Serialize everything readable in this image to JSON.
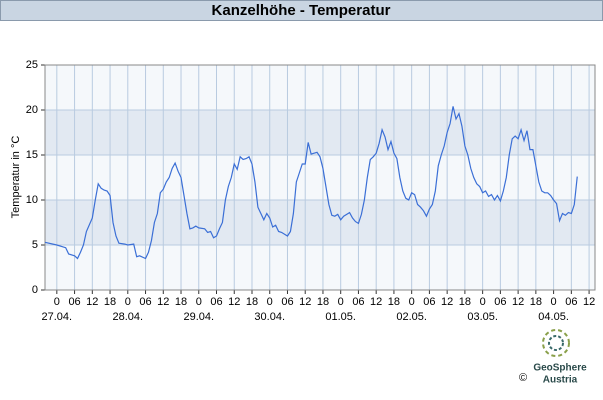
{
  "chart_data": {
    "type": "line",
    "title": "Kanzelhöhe - Temperatur",
    "y_label": "Temperatur in °C",
    "ylim": [
      0,
      25
    ],
    "yticks": [
      0,
      5,
      10,
      15,
      20,
      25
    ],
    "xlim": [
      -4,
      182
    ],
    "xticks": [
      {
        "value": 0,
        "label": "0"
      },
      {
        "value": 6,
        "label": "06"
      },
      {
        "value": 12,
        "label": "12"
      },
      {
        "value": 18,
        "label": "18"
      },
      {
        "value": 24,
        "label": "0"
      },
      {
        "value": 30,
        "label": "06"
      },
      {
        "value": 36,
        "label": "12"
      },
      {
        "value": 42,
        "label": "18"
      },
      {
        "value": 48,
        "label": "0"
      },
      {
        "value": 54,
        "label": "06"
      },
      {
        "value": 60,
        "label": "12"
      },
      {
        "value": 66,
        "label": "18"
      },
      {
        "value": 72,
        "label": "0"
      },
      {
        "value": 78,
        "label": "06"
      },
      {
        "value": 84,
        "label": "12"
      },
      {
        "value": 90,
        "label": "18"
      },
      {
        "value": 96,
        "label": "0"
      },
      {
        "value": 102,
        "label": "06"
      },
      {
        "value": 108,
        "label": "12"
      },
      {
        "value": 114,
        "label": "18"
      },
      {
        "value": 120,
        "label": "0"
      },
      {
        "value": 126,
        "label": "06"
      },
      {
        "value": 132,
        "label": "12"
      },
      {
        "value": 138,
        "label": "18"
      },
      {
        "value": 144,
        "label": "0"
      },
      {
        "value": 150,
        "label": "06"
      },
      {
        "value": 156,
        "label": "12"
      },
      {
        "value": 162,
        "label": "18"
      },
      {
        "value": 168,
        "label": "0"
      },
      {
        "value": 174,
        "label": "06"
      },
      {
        "value": 180,
        "label": "12"
      }
    ],
    "xdates": [
      {
        "value": 0,
        "label": "27.04."
      },
      {
        "value": 24,
        "label": "28.04."
      },
      {
        "value": 48,
        "label": "29.04."
      },
      {
        "value": 72,
        "label": "30.04."
      },
      {
        "value": 96,
        "label": "01.05."
      },
      {
        "value": 120,
        "label": "02.05."
      },
      {
        "value": 144,
        "label": "03.05."
      },
      {
        "value": 168,
        "label": "04.05."
      }
    ],
    "grid": true,
    "series": [
      {
        "name": "Temperatur",
        "color": "#3b6fd6",
        "x": [
          -4,
          0,
          2,
          3,
          4,
          6,
          7,
          8,
          9,
          10,
          12,
          13,
          14,
          15,
          16,
          17,
          18,
          19,
          20,
          21,
          23,
          24,
          26,
          27,
          28,
          30,
          31,
          32,
          33,
          34,
          35,
          36,
          37,
          38,
          39,
          40,
          41,
          42,
          43,
          44,
          45,
          46,
          47,
          48,
          50,
          51,
          52,
          53,
          54,
          55,
          56,
          57,
          58,
          59,
          60,
          61,
          62,
          63,
          64,
          65,
          66,
          67,
          68,
          69,
          70,
          71,
          72,
          73,
          74,
          75,
          76,
          78,
          79,
          80,
          81,
          82,
          83,
          84,
          85,
          86,
          87,
          88,
          89,
          90,
          91,
          92,
          93,
          94,
          95,
          96,
          97,
          99,
          100,
          101,
          102,
          103,
          104,
          105,
          106,
          107,
          108,
          109,
          110,
          111,
          112,
          113,
          114,
          115,
          116,
          117,
          118,
          119,
          120,
          121,
          122,
          123,
          124,
          125,
          126,
          127,
          128,
          129,
          130,
          131,
          132,
          133,
          134,
          135,
          136,
          137,
          138,
          139,
          140,
          141,
          142,
          143,
          144,
          145,
          146,
          147,
          148,
          149,
          150,
          151,
          152,
          153,
          154,
          155,
          156,
          157,
          158,
          159,
          160,
          161,
          162,
          163,
          164,
          165,
          166,
          167,
          168,
          169,
          170,
          171,
          172,
          173,
          174,
          175,
          176
        ],
        "values": [
          5.3,
          5.0,
          4.8,
          4.7,
          4.0,
          3.8,
          3.5,
          4.2,
          5.0,
          6.5,
          8.0,
          10.0,
          11.8,
          11.3,
          11.1,
          11.0,
          10.5,
          7.5,
          6.0,
          5.2,
          5.1,
          5.0,
          5.1,
          3.7,
          3.8,
          3.5,
          4.2,
          5.5,
          7.5,
          8.5,
          10.8,
          11.2,
          12.0,
          12.5,
          13.5,
          14.1,
          13.2,
          12.5,
          10.5,
          8.5,
          6.8,
          6.9,
          7.1,
          6.9,
          6.8,
          6.4,
          6.5,
          5.8,
          6.0,
          6.8,
          7.5,
          10.0,
          11.5,
          12.5,
          14.0,
          13.4,
          14.8,
          14.5,
          14.6,
          14.8,
          14.0,
          12.0,
          9.2,
          8.5,
          7.8,
          8.5,
          8.0,
          7.0,
          7.2,
          6.5,
          6.4,
          6.0,
          6.5,
          8.5,
          12.0,
          13.0,
          14.0,
          14.0,
          16.4,
          15.1,
          15.2,
          15.3,
          14.8,
          13.5,
          11.5,
          9.5,
          8.3,
          8.2,
          8.4,
          7.8,
          8.2,
          8.6,
          8.0,
          7.6,
          7.4,
          8.4,
          10.0,
          12.5,
          14.5,
          14.8,
          15.2,
          16.3,
          17.8,
          17.0,
          15.6,
          16.5,
          15.2,
          14.6,
          12.5,
          11.0,
          10.2,
          10.0,
          10.8,
          10.6,
          9.5,
          9.2,
          8.8,
          8.2,
          9.0,
          9.5,
          11.0,
          13.8,
          15.0,
          16.0,
          17.5,
          18.5,
          20.4,
          19.0,
          19.6,
          18.2,
          16.0,
          15.0,
          13.5,
          12.5,
          11.8,
          11.5,
          10.8,
          11.0,
          10.4,
          10.6,
          10.0,
          10.5,
          9.9,
          11.0,
          12.5,
          15.0,
          16.8,
          17.1,
          16.8,
          17.8,
          16.6,
          17.7,
          15.6,
          15.6,
          13.8,
          12.0,
          11.0,
          10.8,
          10.8,
          10.5,
          10.0,
          9.6,
          7.7,
          8.5,
          8.3,
          8.6,
          8.5,
          9.5,
          12.6
        ]
      }
    ]
  },
  "logo": {
    "name": "GeoSphere",
    "sub": "Austria",
    "copyright": "©"
  }
}
